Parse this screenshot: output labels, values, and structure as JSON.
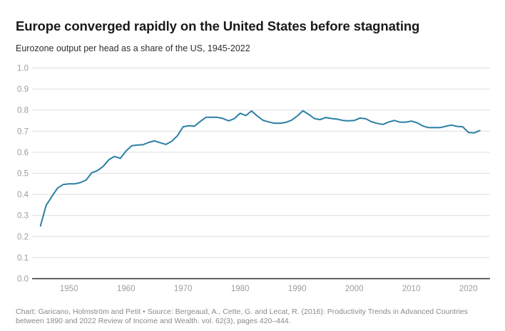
{
  "header": {
    "title": "Europe converged rapidly on the United States before stagnating",
    "subtitle": "Eurozone output per head as a share of the US, 1945-2022"
  },
  "footer": {
    "line1": "Chart: Garicano, Holmström and Petit • Source: Bergeaud, A., Cette, G. and Lecat, R. (2016):  Productivity Trends in Advanced Countries",
    "line2": "between 1890 and 2022  Review of Income and Wealth. vol. 62(3), pages 420–444."
  },
  "chart_data": {
    "type": "line",
    "title": "Europe converged rapidly on the United States before stagnating",
    "subtitle": "Eurozone output per head as a share of the US, 1945-2022",
    "series_name": "Eurozone output per head as a share of the US",
    "x_start": 1945,
    "x_end": 2022,
    "x_step": 1,
    "values": [
      0.25,
      0.348,
      0.39,
      0.43,
      0.447,
      0.45,
      0.45,
      0.456,
      0.468,
      0.503,
      0.513,
      0.533,
      0.565,
      0.58,
      0.571,
      0.606,
      0.631,
      0.634,
      0.636,
      0.647,
      0.654,
      0.645,
      0.637,
      0.652,
      0.678,
      0.721,
      0.726,
      0.724,
      0.746,
      0.766,
      0.766,
      0.766,
      0.76,
      0.749,
      0.76,
      0.785,
      0.774,
      0.796,
      0.772,
      0.752,
      0.744,
      0.738,
      0.738,
      0.742,
      0.752,
      0.772,
      0.797,
      0.78,
      0.76,
      0.755,
      0.765,
      0.76,
      0.757,
      0.751,
      0.749,
      0.751,
      0.762,
      0.759,
      0.745,
      0.737,
      0.732,
      0.743,
      0.751,
      0.743,
      0.743,
      0.748,
      0.74,
      0.725,
      0.717,
      0.717,
      0.717,
      0.723,
      0.729,
      0.723,
      0.721,
      0.694,
      0.692,
      0.703
    ],
    "ylim": [
      0.0,
      1.0
    ],
    "y_ticks": [
      1.0,
      0.9,
      0.8,
      0.7,
      0.6,
      0.5,
      0.4,
      0.3,
      0.2,
      0.1,
      0.0
    ],
    "x_ticks": [
      1950,
      1960,
      1970,
      1980,
      1990,
      2000,
      2010,
      2020
    ],
    "xlabel": "",
    "ylabel": "",
    "grid": true,
    "legend_position": "none",
    "colors": {
      "line": "#2b7fa5",
      "grid": "#dddddd",
      "zero_axis": "#2e2e2e",
      "tick_label": "#9c9c9c",
      "title": "#1a1a1a",
      "subtitle": "#2e2e2e",
      "source": "#8a8a8a"
    }
  }
}
